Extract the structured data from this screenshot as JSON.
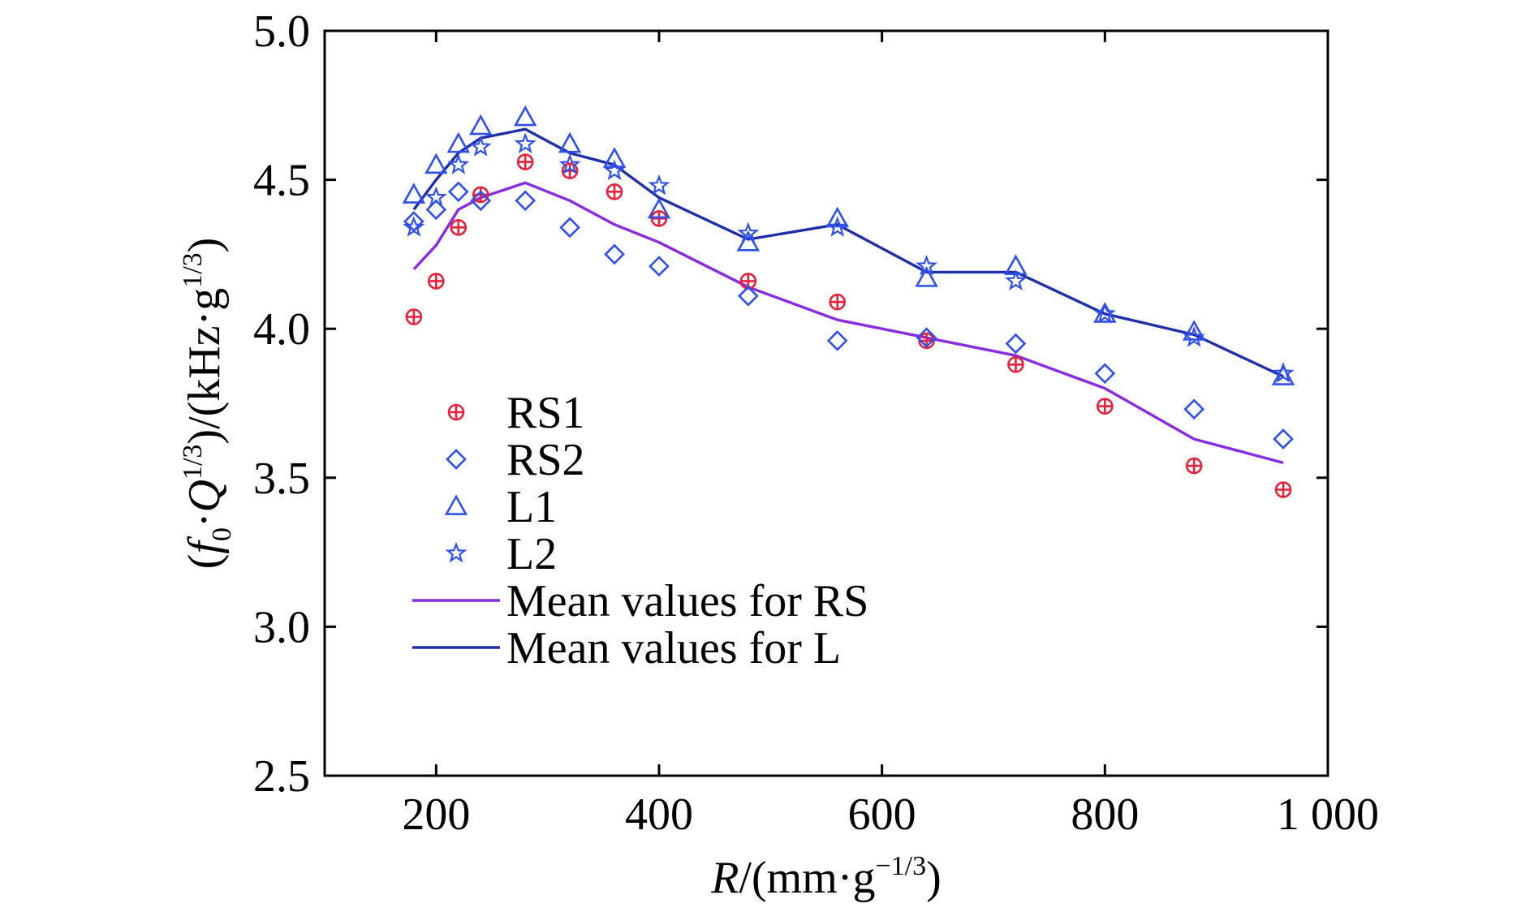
{
  "colors": {
    "rs1": "#e8203a",
    "rs2": "#2f4ff0",
    "l1": "#2f4ff0",
    "l2": "#2f4ff0",
    "mean_rs": "#8a2be2",
    "mean_l": "#1f2fa8",
    "axis": "#000000"
  },
  "chart_data": {
    "type": "scatter",
    "xlabel_parts": {
      "var": "R",
      "unit": "/(mm·g",
      "exp": "−1/3",
      "close": ")"
    },
    "ylabel_parts": {
      "open": "(",
      "f": "f",
      "sub": "0",
      "dot": "·",
      "q": "Q",
      "exp1": "1/3",
      "mid": ")/(kHz·g",
      "exp2": "1/3",
      "close": ")"
    },
    "xlim": [
      100,
      1000
    ],
    "ylim": [
      2.5,
      5.0
    ],
    "x_ticks": [
      200,
      400,
      600,
      800,
      1000
    ],
    "x_tick_labels": [
      "200",
      "400",
      "600",
      "800",
      "1 000"
    ],
    "y_ticks": [
      2.5,
      3.0,
      3.5,
      4.0,
      4.5,
      5.0
    ],
    "y_tick_labels": [
      "2.5",
      "3.0",
      "3.5",
      "4.0",
      "4.5",
      "5.0"
    ],
    "grid": false,
    "legend_position": "center-left",
    "x": [
      180,
      200,
      220,
      240,
      280,
      320,
      360,
      400,
      480,
      560,
      640,
      720,
      800,
      880,
      960
    ],
    "series": [
      {
        "name": "RS1",
        "marker": "circle-plus",
        "colorKey": "rs1",
        "values": [
          4.04,
          4.16,
          4.34,
          4.45,
          4.56,
          4.53,
          4.46,
          4.37,
          4.16,
          4.09,
          3.96,
          3.88,
          3.74,
          3.54,
          3.46
        ]
      },
      {
        "name": "RS2",
        "marker": "diamond",
        "colorKey": "rs2",
        "values": [
          4.36,
          4.4,
          4.46,
          4.43,
          4.43,
          4.34,
          4.25,
          4.21,
          4.11,
          3.96,
          3.97,
          3.95,
          3.85,
          3.73,
          3.63
        ]
      },
      {
        "name": "L1",
        "marker": "triangle",
        "colorKey": "l1",
        "values": [
          4.45,
          4.55,
          4.62,
          4.68,
          4.71,
          4.62,
          4.57,
          4.4,
          4.29,
          4.37,
          4.17,
          4.21,
          4.05,
          3.99,
          3.84
        ]
      },
      {
        "name": "L2",
        "marker": "star",
        "colorKey": "l2",
        "values": [
          4.34,
          4.44,
          4.55,
          4.61,
          4.62,
          4.55,
          4.53,
          4.48,
          4.32,
          4.34,
          4.21,
          4.16,
          4.05,
          3.97,
          3.85
        ]
      },
      {
        "name": "Mean values for RS",
        "marker": "line",
        "colorKey": "mean_rs",
        "values": [
          4.2,
          4.28,
          4.4,
          4.44,
          4.49,
          4.43,
          4.35,
          4.29,
          4.14,
          4.03,
          3.97,
          3.91,
          3.8,
          3.63,
          3.55
        ]
      },
      {
        "name": "Mean values for L",
        "marker": "line",
        "colorKey": "mean_l",
        "values": [
          4.4,
          4.5,
          4.59,
          4.64,
          4.67,
          4.59,
          4.55,
          4.44,
          4.3,
          4.35,
          4.19,
          4.19,
          4.05,
          3.98,
          3.84
        ]
      }
    ]
  }
}
